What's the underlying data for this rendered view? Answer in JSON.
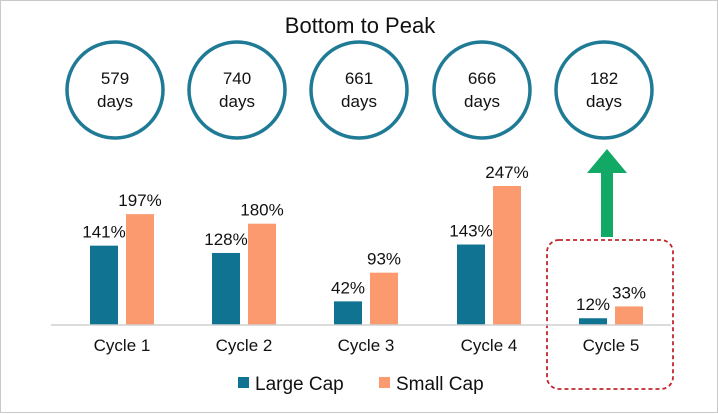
{
  "chart_data": {
    "type": "bar",
    "title": "Bottom to Peak",
    "categories": [
      "Cycle 1",
      "Cycle 2",
      "Cycle 3",
      "Cycle 4",
      "Cycle 5"
    ],
    "durations": [
      "579\ndays",
      "740\ndays",
      "661\ndays",
      "666\ndays",
      "182\ndays"
    ],
    "series": [
      {
        "name": "Large Cap",
        "color": "#0F7391",
        "values": [
          141,
          128,
          42,
          143,
          12
        ],
        "labels": [
          "141%",
          "128%",
          "42%",
          "143%",
          "12%"
        ]
      },
      {
        "name": "Small Cap",
        "color": "#FA9A6E",
        "values": [
          197,
          180,
          93,
          247,
          33
        ],
        "labels": [
          "197%",
          "180%",
          "93%",
          "247%",
          "33%"
        ]
      }
    ],
    "ylim": [
      0,
      247
    ],
    "legend_position": "bottom",
    "circle_color": "#1F7A96",
    "arrow_color": "#12A865",
    "highlight_color": "#C0272D",
    "highlight_category": "Cycle 5"
  }
}
